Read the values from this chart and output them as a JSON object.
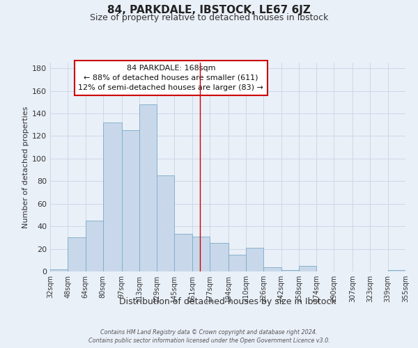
{
  "title": "84, PARKDALE, IBSTOCK, LE67 6JZ",
  "subtitle": "Size of property relative to detached houses in Ibstock",
  "xlabel": "Distribution of detached houses by size in Ibstock",
  "ylabel": "Number of detached properties",
  "bar_color": "#c8d8ea",
  "bar_edge_color": "#7aaac8",
  "grid_color": "#ccd8e8",
  "background_color": "#eaf0f8",
  "vline_x": 168,
  "vline_color": "#cc0000",
  "bin_edges": [
    32,
    48,
    64,
    80,
    97,
    113,
    129,
    145,
    161,
    177,
    194,
    210,
    226,
    242,
    258,
    274,
    290,
    307,
    323,
    339,
    355
  ],
  "bar_heights": [
    2,
    30,
    45,
    132,
    125,
    148,
    85,
    33,
    31,
    25,
    15,
    21,
    4,
    1,
    5,
    0,
    0,
    0,
    0,
    1
  ],
  "tick_labels": [
    "32sqm",
    "48sqm",
    "64sqm",
    "80sqm",
    "97sqm",
    "113sqm",
    "129sqm",
    "145sqm",
    "161sqm",
    "177sqm",
    "194sqm",
    "210sqm",
    "226sqm",
    "242sqm",
    "258sqm",
    "274sqm",
    "290sqm",
    "307sqm",
    "323sqm",
    "339sqm",
    "355sqm"
  ],
  "ylim": [
    0,
    185
  ],
  "yticks": [
    0,
    20,
    40,
    60,
    80,
    100,
    120,
    140,
    160,
    180
  ],
  "annotation_title": "84 PARKDALE: 168sqm",
  "annotation_line1": "← 88% of detached houses are smaller (611)",
  "annotation_line2": "12% of semi-detached houses are larger (83) →",
  "annotation_box_color": "#ffffff",
  "annotation_box_edge_color": "#cc0000",
  "footer_line1": "Contains HM Land Registry data © Crown copyright and database right 2024.",
  "footer_line2": "Contains public sector information licensed under the Open Government Licence v3.0."
}
